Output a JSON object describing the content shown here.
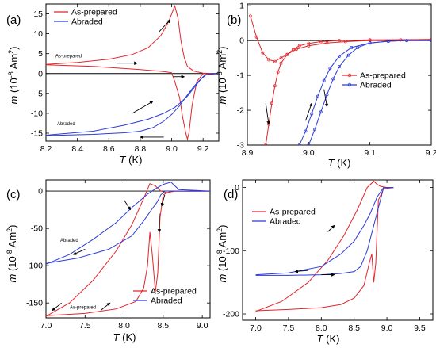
{
  "figure": {
    "colors": {
      "as_prepared": "#e0262b",
      "abraded": "#2b3bd6"
    }
  },
  "chart_data": [
    {
      "type": "line",
      "panel_label": "(a)",
      "xlabel_var": "T",
      "xlabel_unit": " (K)",
      "ylabel_var": "m",
      "ylabel_unit": " (10",
      "ylabel_exp": "-8",
      "ylabel_unit2": " Am",
      "ylabel_exp2": "2",
      "ylabel_close": ")",
      "xlim": [
        8.2,
        9.3
      ],
      "ylim": [
        -17,
        17.5
      ],
      "xticks": [
        8.2,
        8.4,
        8.6,
        8.8,
        9.0,
        9.2
      ],
      "xtick_labels": [
        "8.2",
        "8.4",
        "8.6",
        "8.8",
        "9.0",
        "9.2"
      ],
      "yticks": [
        -15,
        -10,
        -5,
        0,
        5,
        10,
        15
      ],
      "ytick_labels": [
        "-15",
        "-10",
        "-5",
        "0",
        "5",
        "10",
        "15"
      ],
      "legend": {
        "placement": "top-left",
        "entries": [
          "As-prepared",
          "Abraded"
        ]
      },
      "annotations": [
        "As-prepared",
        "Abraded"
      ],
      "series": [
        {
          "name": "As-prepared",
          "x": [
            8.2,
            8.4,
            8.6,
            8.75,
            8.85,
            8.93,
            8.98,
            9.02,
            9.04,
            9.06,
            9.08,
            9.1,
            9.14,
            9.2,
            9.3
          ],
          "y": [
            2.3,
            2.8,
            3.6,
            4.8,
            6.5,
            9.5,
            13,
            17,
            14,
            8,
            4,
            1.8,
            0.6,
            0.1,
            0
          ]
        },
        {
          "name": "As-prepared",
          "x": [
            8.2,
            8.5,
            8.8,
            8.95,
            9.0,
            9.02,
            9.05,
            9.07,
            9.09,
            9.1,
            9.11,
            9.13,
            9.16,
            9.2,
            9.3
          ],
          "y": [
            2.2,
            1.8,
            1.0,
            0.5,
            0.2,
            -2,
            -6,
            -11,
            -15,
            -16.5,
            -15,
            -8,
            -2,
            0,
            0
          ]
        },
        {
          "name": "Abraded",
          "x": [
            8.2,
            8.5,
            8.7,
            8.85,
            8.95,
            9.02,
            9.06,
            9.1,
            9.13,
            9.16,
            9.18,
            9.2,
            9.22,
            9.3
          ],
          "y": [
            -15.5,
            -14.5,
            -13,
            -11.5,
            -10,
            -8.5,
            -7.2,
            -5.7,
            -4.2,
            -2.7,
            -1.7,
            -0.8,
            -0.2,
            0
          ]
        },
        {
          "name": "Abraded",
          "x": [
            8.2,
            8.5,
            8.7,
            8.8,
            8.88,
            8.95,
            9.0,
            9.05,
            9.1,
            9.14,
            9.18,
            9.22,
            9.3
          ],
          "y": [
            -15.6,
            -15.3,
            -14.9,
            -14.5,
            -13.6,
            -12,
            -10.3,
            -8.1,
            -5.4,
            -3.3,
            -1.6,
            -0.3,
            0
          ]
        }
      ]
    },
    {
      "type": "line",
      "panel_label": "(b)",
      "xlabel_var": "T",
      "xlabel_unit": " (K)",
      "ylabel_var": "m",
      "ylabel_unit": " (10",
      "ylabel_exp": "-8",
      "ylabel_unit2": " Am",
      "ylabel_exp2": "2",
      "ylabel_close": ")",
      "xlim": [
        8.9,
        9.2
      ],
      "ylim": [
        -3,
        1.05
      ],
      "xticks": [
        8.9,
        9.0,
        9.1,
        9.2
      ],
      "xtick_labels": [
        "8.9",
        "9.0",
        "9.1",
        "9.2"
      ],
      "yticks": [
        -3,
        -2,
        -1,
        0,
        1
      ],
      "ytick_labels": [
        "-3",
        "-2",
        "-1",
        "0",
        "1"
      ],
      "legend": {
        "placement": "center-right",
        "entries": [
          "As-prepared",
          "Abraded"
        ]
      },
      "series": [
        {
          "name": "As-prepared",
          "x": [
            8.905,
            8.915,
            8.925,
            8.935,
            8.945,
            8.955,
            8.965,
            8.98,
            9.0,
            9.03,
            9.06,
            9.1,
            9.15,
            9.2
          ],
          "y": [
            0.7,
            0.1,
            -0.35,
            -0.55,
            -0.6,
            -0.5,
            -0.4,
            -0.25,
            -0.15,
            -0.07,
            -0.03,
            0,
            0.02,
            0.03
          ]
        },
        {
          "name": "As-prepared",
          "x": [
            8.93,
            8.935,
            8.94,
            8.945,
            8.95,
            8.955,
            8.965,
            8.975,
            8.985,
            9.0,
            9.02,
            9.05,
            9.1,
            9.2
          ],
          "y": [
            -3,
            -2.4,
            -1.8,
            -1.3,
            -0.9,
            -0.65,
            -0.4,
            -0.25,
            -0.15,
            -0.08,
            -0.03,
            0,
            0.02,
            0.03
          ]
        },
        {
          "name": "Abraded",
          "x": [
            8.985,
            8.995,
            9.005,
            9.015,
            9.025,
            9.035,
            9.05,
            9.07,
            9.1,
            9.13,
            9.16,
            9.2
          ],
          "y": [
            -3,
            -2.6,
            -2.1,
            -1.6,
            -1.15,
            -0.8,
            -0.45,
            -0.2,
            -0.07,
            -0.02,
            0,
            0
          ]
        },
        {
          "name": "Abraded",
          "x": [
            9.0,
            9.01,
            9.02,
            9.03,
            9.04,
            9.05,
            9.065,
            9.08,
            9.1,
            9.13,
            9.16,
            9.2
          ],
          "y": [
            -3,
            -2.55,
            -2.05,
            -1.55,
            -1.1,
            -0.75,
            -0.42,
            -0.2,
            -0.07,
            -0.02,
            0,
            0
          ]
        }
      ]
    },
    {
      "type": "line",
      "panel_label": "(c)",
      "xlabel_var": "T",
      "xlabel_unit": " (K)",
      "ylabel_var": "m",
      "ylabel_unit": " (10",
      "ylabel_exp": "-8",
      "ylabel_unit2": " Am",
      "ylabel_exp2": "2",
      "ylabel_close": ")",
      "xlim": [
        7.0,
        9.1
      ],
      "ylim": [
        -170,
        15
      ],
      "xticks": [
        7.0,
        7.5,
        8.0,
        8.5,
        9.0
      ],
      "xtick_labels": [
        "7.0",
        "7.5",
        "8.0",
        "8.5",
        "9.0"
      ],
      "yticks": [
        -150,
        -100,
        -50,
        0
      ],
      "ytick_labels": [
        "-150",
        "-100",
        "-50",
        "0"
      ],
      "legend": {
        "placement": "bottom-right",
        "entries": [
          "As-prepared",
          "Abraded"
        ]
      },
      "annotations": [
        "Abraded",
        "As-prepared"
      ],
      "series": [
        {
          "name": "As-prepared",
          "x": [
            7.0,
            7.3,
            7.6,
            7.9,
            8.1,
            8.25,
            8.33,
            8.4,
            8.47,
            8.55,
            8.65,
            8.8,
            9.1
          ],
          "y": [
            -168,
            -150,
            -120,
            -80,
            -45,
            -10,
            10,
            7,
            0,
            -2,
            0,
            0,
            0
          ]
        },
        {
          "name": "As-prepared",
          "x": [
            7.0,
            7.5,
            7.9,
            8.15,
            8.25,
            8.3,
            8.33,
            8.36,
            8.4,
            8.43,
            8.46,
            8.5,
            8.6,
            8.8,
            9.1
          ],
          "y": [
            -167,
            -164,
            -158,
            -148,
            -130,
            -100,
            -55,
            -85,
            -135,
            -110,
            -35,
            -5,
            0,
            0,
            0
          ]
        },
        {
          "name": "Abraded",
          "x": [
            7.0,
            7.3,
            7.6,
            7.9,
            8.1,
            8.3,
            8.4,
            8.5,
            8.6,
            8.7,
            9.1
          ],
          "y": [
            -98,
            -85,
            -65,
            -42,
            -22,
            -4,
            3,
            9,
            12,
            2,
            0
          ]
        },
        {
          "name": "Abraded",
          "x": [
            7.0,
            7.4,
            7.8,
            8.1,
            8.25,
            8.35,
            8.42,
            8.47,
            8.52,
            8.6,
            8.7,
            9.1
          ],
          "y": [
            -97,
            -90,
            -78,
            -60,
            -40,
            -25,
            -15,
            -5,
            0,
            0,
            0,
            0
          ]
        }
      ]
    },
    {
      "type": "line",
      "panel_label": "(d)",
      "xlabel_var": "T",
      "xlabel_unit": " (K)",
      "ylabel_var": "m",
      "ylabel_unit": " (10",
      "ylabel_exp": "-8",
      "ylabel_unit2": " Am",
      "ylabel_exp2": "2",
      "ylabel_close": ")",
      "xlim": [
        6.8,
        9.7
      ],
      "ylim": [
        -210,
        12
      ],
      "xticks": [
        7.0,
        7.5,
        8.0,
        8.5,
        9.0,
        9.5
      ],
      "xtick_labels": [
        "7.0",
        "7.5",
        "8.0",
        "8.5",
        "9.0",
        "9.5"
      ],
      "yticks": [
        -200,
        -100,
        0
      ],
      "ytick_labels": [
        "-200",
        "-100",
        "0"
      ],
      "legend": {
        "placement": "top-left",
        "entries": [
          "As-prepared",
          "Abraded"
        ]
      },
      "series": [
        {
          "name": "As-prepared",
          "x": [
            7.0,
            7.4,
            7.8,
            8.1,
            8.35,
            8.55,
            8.7,
            8.8,
            8.85,
            8.9,
            9.0,
            9.1
          ],
          "y": [
            -196,
            -180,
            -150,
            -115,
            -75,
            -35,
            0,
            10,
            5,
            2,
            0,
            0
          ]
        },
        {
          "name": "As-prepared",
          "x": [
            7.0,
            7.5,
            8.0,
            8.3,
            8.5,
            8.65,
            8.73,
            8.77,
            8.8,
            8.83,
            8.87,
            8.95,
            9.1
          ],
          "y": [
            -195,
            -193,
            -190,
            -185,
            -175,
            -155,
            -120,
            -105,
            -150,
            -120,
            -20,
            -2,
            0
          ]
        },
        {
          "name": "Abraded",
          "x": [
            7.0,
            7.5,
            8.0,
            8.3,
            8.5,
            8.65,
            8.75,
            8.85,
            8.95,
            9.1
          ],
          "y": [
            -138,
            -135,
            -125,
            -105,
            -85,
            -60,
            -40,
            -15,
            0,
            0
          ]
        },
        {
          "name": "Abraded",
          "x": [
            7.0,
            7.5,
            8.0,
            8.3,
            8.5,
            8.6,
            8.7,
            8.8,
            8.9,
            8.95,
            9.1
          ],
          "y": [
            -139,
            -139,
            -138,
            -136,
            -133,
            -125,
            -100,
            -60,
            -20,
            0,
            0
          ]
        }
      ]
    }
  ]
}
